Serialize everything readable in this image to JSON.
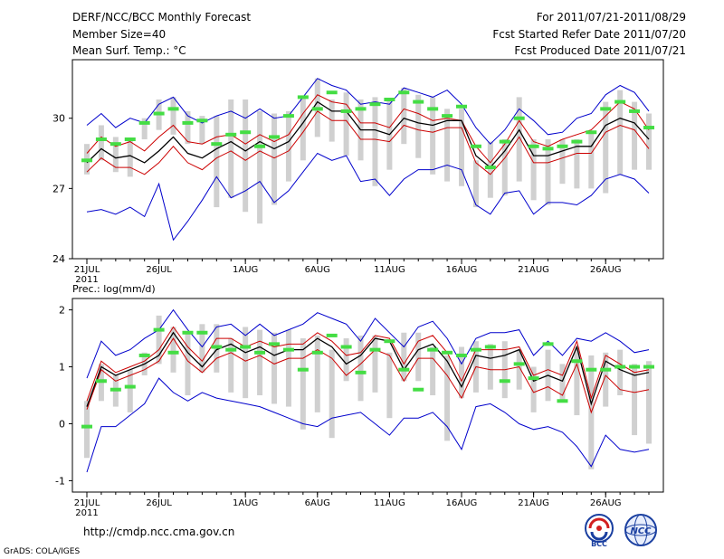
{
  "header": {
    "title": "DERF/NCC/BCC Monthly Forecast",
    "member_size": "Member Size=40",
    "variable_1": "Mean Surf. Temp.: °C",
    "fcst_period": "For 2011/07/21-2011/08/29",
    "fcst_started": "Fcst Started Refer Date 2011/07/20",
    "fcst_produced": "Fcst Produced Date 2011/07/21"
  },
  "footer": {
    "url": "http://cmdp.ncc.cma.gov.cn",
    "grads": "GrADS: COLA/IGES",
    "logo_bcc": "BCC",
    "logo_ncc": "NCC"
  },
  "colors": {
    "max_min": "#0000cc",
    "spread": "#cc0000",
    "mean": "#000000",
    "box": "#d0d0d0",
    "marker": "#44dd44"
  },
  "chart_data": [
    {
      "type": "line",
      "title": "Mean Surf. Temp.: °C",
      "ylim": [
        24,
        32.5
      ],
      "yticks": [
        24,
        27,
        30
      ],
      "ytick_labels": [
        "24",
        "27",
        "30"
      ],
      "xtick_labels": [
        "21JUL",
        "26JUL",
        "1AUG",
        "6AUG",
        "11AUG",
        "16AUG",
        "21AUG",
        "26AUG"
      ],
      "xtick_indices": [
        0,
        5,
        11,
        16,
        21,
        26,
        31,
        36
      ],
      "year_label": "2011",
      "series": [
        {
          "name": "max",
          "color": "#0000cc",
          "values": [
            29.7,
            30.2,
            29.6,
            30.0,
            29.8,
            30.6,
            30.9,
            30.1,
            29.8,
            30.1,
            30.3,
            30.0,
            30.4,
            30.0,
            30.1,
            30.9,
            31.7,
            31.4,
            31.2,
            30.6,
            30.7,
            30.6,
            31.3,
            31.1,
            30.9,
            31.2,
            30.6,
            29.6,
            28.9,
            29.5,
            30.4,
            29.9,
            29.3,
            29.4,
            30.0,
            30.2,
            31.0,
            31.4,
            31.1,
            30.3
          ]
        },
        {
          "name": "upper",
          "color": "#cc0000",
          "values": [
            28.5,
            29.2,
            28.8,
            29.0,
            28.6,
            29.2,
            29.7,
            29.0,
            28.9,
            29.2,
            29.3,
            28.9,
            29.3,
            29.0,
            29.3,
            30.2,
            31.0,
            30.7,
            30.6,
            29.8,
            29.8,
            29.6,
            30.4,
            30.2,
            29.9,
            30.0,
            29.9,
            28.8,
            28.1,
            28.9,
            29.9,
            29.0,
            28.8,
            29.1,
            29.3,
            29.5,
            30.1,
            30.7,
            30.4,
            29.5
          ]
        },
        {
          "name": "mean",
          "color": "#000000",
          "values": [
            28.1,
            28.7,
            28.3,
            28.4,
            28.1,
            28.6,
            29.2,
            28.5,
            28.3,
            28.7,
            29.0,
            28.6,
            29.0,
            28.7,
            29.0,
            29.8,
            30.7,
            30.3,
            30.3,
            29.5,
            29.5,
            29.3,
            30.0,
            29.8,
            29.7,
            29.9,
            29.9,
            28.4,
            27.9,
            28.6,
            29.5,
            28.4,
            28.4,
            28.6,
            28.8,
            28.8,
            29.7,
            30.0,
            29.8,
            29.1
          ]
        },
        {
          "name": "lower",
          "color": "#cc0000",
          "values": [
            27.7,
            28.3,
            27.9,
            27.9,
            27.6,
            28.1,
            28.8,
            28.1,
            27.8,
            28.3,
            28.6,
            28.2,
            28.6,
            28.3,
            28.6,
            29.4,
            30.3,
            29.9,
            29.9,
            29.1,
            29.1,
            29.0,
            29.7,
            29.5,
            29.4,
            29.6,
            29.6,
            28.1,
            27.6,
            28.3,
            29.2,
            28.1,
            28.1,
            28.3,
            28.5,
            28.5,
            29.4,
            29.7,
            29.5,
            28.7
          ]
        },
        {
          "name": "min",
          "color": "#0000cc",
          "values": [
            26.0,
            26.1,
            25.9,
            26.2,
            25.8,
            27.2,
            24.8,
            25.6,
            26.5,
            27.5,
            26.6,
            26.9,
            27.3,
            26.4,
            26.9,
            27.7,
            28.5,
            28.2,
            28.4,
            27.3,
            27.4,
            26.7,
            27.4,
            27.8,
            27.8,
            28.0,
            27.8,
            26.3,
            25.9,
            26.8,
            26.9,
            25.9,
            26.4,
            26.4,
            26.3,
            26.7,
            27.4,
            27.6,
            27.4,
            26.8
          ]
        },
        {
          "name": "marker",
          "color": "#44dd44",
          "values": [
            28.2,
            29.1,
            28.9,
            29.1,
            29.8,
            30.2,
            30.4,
            29.8,
            29.9,
            28.9,
            29.3,
            29.4,
            28.8,
            29.2,
            30.1,
            30.9,
            30.4,
            31.1,
            30.3,
            30.4,
            30.6,
            30.8,
            31.1,
            30.7,
            30.4,
            30.1,
            30.5,
            28.8,
            27.9,
            29.0,
            30.0,
            28.8,
            28.7,
            28.8,
            29.0,
            29.4,
            30.4,
            30.7,
            30.3,
            29.6
          ]
        }
      ],
      "boxes": [
        [
          27.6,
          28.9
        ],
        [
          28.2,
          29.7
        ],
        [
          27.7,
          29.2
        ],
        [
          27.5,
          29.1
        ],
        [
          29.1,
          30.0
        ],
        [
          29.5,
          30.8
        ],
        [
          29.3,
          30.9
        ],
        [
          28.9,
          30.3
        ],
        [
          28.9,
          30.1
        ],
        [
          26.2,
          30.1
        ],
        [
          26.6,
          30.8
        ],
        [
          26.0,
          30.8
        ],
        [
          25.5,
          30.3
        ],
        [
          26.3,
          30.2
        ],
        [
          27.3,
          30.3
        ],
        [
          28.2,
          30.9
        ],
        [
          29.2,
          31.7
        ],
        [
          29.0,
          30.8
        ],
        [
          28.4,
          31.1
        ],
        [
          28.2,
          30.8
        ],
        [
          27.1,
          30.9
        ],
        [
          27.8,
          30.8
        ],
        [
          28.9,
          31.3
        ],
        [
          28.3,
          31.0
        ],
        [
          27.6,
          30.9
        ],
        [
          27.3,
          30.4
        ],
        [
          27.1,
          30.4
        ],
        [
          26.2,
          28.2
        ],
        [
          26.6,
          29.0
        ],
        [
          26.7,
          29.1
        ],
        [
          27.3,
          30.9
        ],
        [
          26.5,
          29.1
        ],
        [
          26.3,
          29.1
        ],
        [
          27.2,
          29.1
        ],
        [
          27.0,
          29.1
        ],
        [
          27.0,
          29.4
        ],
        [
          26.8,
          30.7
        ],
        [
          27.6,
          31.2
        ],
        [
          27.8,
          30.7
        ],
        [
          27.8,
          30.2
        ]
      ]
    },
    {
      "type": "line",
      "title": "Prec.: log(mm/d)",
      "ylim": [
        -1.2,
        2.2
      ],
      "yticks": [
        -1,
        0,
        1,
        2
      ],
      "ytick_labels": [
        "-1",
        "0",
        "1",
        "2"
      ],
      "xtick_labels": [
        "21JUL",
        "26JUL",
        "1AUG",
        "6AUG",
        "11AUG",
        "16AUG",
        "21AUG",
        "26AUG"
      ],
      "xtick_indices": [
        0,
        5,
        11,
        16,
        21,
        26,
        31,
        36
      ],
      "year_label": "2011",
      "series": [
        {
          "name": "max",
          "color": "#0000cc",
          "values": [
            0.8,
            1.45,
            1.2,
            1.3,
            1.5,
            1.65,
            2.0,
            1.65,
            1.35,
            1.7,
            1.75,
            1.55,
            1.75,
            1.55,
            1.65,
            1.75,
            1.95,
            1.85,
            1.75,
            1.45,
            1.85,
            1.6,
            1.35,
            1.7,
            1.8,
            1.5,
            1.05,
            1.5,
            1.6,
            1.6,
            1.65,
            1.2,
            1.45,
            1.2,
            1.5,
            1.45,
            1.6,
            1.45,
            1.25,
            1.3
          ]
        },
        {
          "name": "upper",
          "color": "#cc0000",
          "values": [
            0.4,
            1.1,
            0.9,
            1.0,
            1.1,
            1.3,
            1.7,
            1.35,
            1.1,
            1.5,
            1.5,
            1.35,
            1.45,
            1.35,
            1.4,
            1.4,
            1.6,
            1.45,
            1.2,
            1.25,
            1.55,
            1.5,
            1.05,
            1.45,
            1.55,
            1.25,
            0.75,
            1.3,
            1.3,
            1.3,
            1.35,
            0.85,
            0.95,
            0.85,
            1.45,
            0.45,
            1.2,
            1.05,
            0.9,
            0.95
          ]
        },
        {
          "name": "mean",
          "color": "#000000",
          "values": [
            0.3,
            1.0,
            0.85,
            0.95,
            1.05,
            1.2,
            1.6,
            1.25,
            1.0,
            1.3,
            1.4,
            1.25,
            1.35,
            1.2,
            1.3,
            1.3,
            1.5,
            1.35,
            1.05,
            1.2,
            1.5,
            1.45,
            0.95,
            1.3,
            1.4,
            1.1,
            0.65,
            1.2,
            1.15,
            1.2,
            1.3,
            0.75,
            0.85,
            0.75,
            1.35,
            0.35,
            1.1,
            0.95,
            0.85,
            0.9
          ]
        },
        {
          "name": "lower",
          "color": "#cc0000",
          "values": [
            0.25,
            0.95,
            0.75,
            0.85,
            0.95,
            1.1,
            1.5,
            1.1,
            0.9,
            1.15,
            1.25,
            1.1,
            1.2,
            1.05,
            1.15,
            1.15,
            1.3,
            1.15,
            0.85,
            1.05,
            1.3,
            1.2,
            0.75,
            1.15,
            1.15,
            0.85,
            0.45,
            1.0,
            0.95,
            0.95,
            1.0,
            0.55,
            0.65,
            0.5,
            1.05,
            0.2,
            0.85,
            0.6,
            0.55,
            0.6
          ]
        },
        {
          "name": "min",
          "color": "#0000cc",
          "values": [
            -0.85,
            -0.05,
            -0.05,
            0.15,
            0.35,
            0.8,
            0.55,
            0.4,
            0.55,
            0.45,
            0.4,
            0.35,
            0.3,
            0.2,
            0.1,
            0.0,
            -0.05,
            0.1,
            0.15,
            0.2,
            0.0,
            -0.2,
            0.1,
            0.1,
            0.2,
            -0.05,
            -0.45,
            0.3,
            0.35,
            0.2,
            0.0,
            -0.1,
            -0.05,
            -0.15,
            -0.4,
            -0.75,
            -0.2,
            -0.45,
            -0.5,
            -0.45
          ]
        },
        {
          "name": "marker",
          "color": "#44dd44",
          "values": [
            -0.05,
            0.75,
            0.6,
            0.65,
            1.2,
            1.65,
            1.25,
            1.6,
            1.6,
            1.35,
            1.3,
            1.35,
            1.25,
            1.4,
            1.3,
            0.95,
            1.25,
            1.55,
            1.35,
            0.9,
            1.3,
            1.45,
            0.95,
            0.6,
            1.3,
            1.25,
            1.2,
            1.3,
            1.35,
            0.75,
            1.05,
            0.8,
            1.4,
            0.4,
            1.1,
            0.95,
            0.95,
            1.0,
            1.0,
            1.0
          ]
        }
      ],
      "boxes": [
        [
          -0.6,
          0.4
        ],
        [
          0.4,
          1.05
        ],
        [
          0.3,
          0.85
        ],
        [
          0.2,
          0.95
        ],
        [
          0.85,
          1.25
        ],
        [
          1.05,
          1.9
        ],
        [
          0.9,
          1.7
        ],
        [
          0.5,
          1.6
        ],
        [
          0.9,
          1.75
        ],
        [
          0.9,
          1.75
        ],
        [
          0.55,
          1.5
        ],
        [
          0.45,
          1.7
        ],
        [
          0.5,
          1.65
        ],
        [
          0.35,
          1.6
        ],
        [
          0.3,
          1.65
        ],
        [
          -0.1,
          1.5
        ],
        [
          0.2,
          1.55
        ],
        [
          -0.25,
          1.3
        ],
        [
          0.75,
          1.5
        ],
        [
          0.4,
          1.55
        ],
        [
          0.55,
          1.55
        ],
        [
          0.1,
          1.25
        ],
        [
          0.75,
          1.6
        ],
        [
          0.75,
          1.6
        ],
        [
          0.5,
          1.35
        ],
        [
          -0.3,
          1.2
        ],
        [
          0.45,
          1.35
        ],
        [
          0.55,
          1.45
        ],
        [
          0.6,
          1.4
        ],
        [
          0.45,
          1.45
        ],
        [
          0.6,
          1.3
        ],
        [
          0.2,
          1.0
        ],
        [
          0.4,
          1.3
        ],
        [
          0.4,
          1.05
        ],
        [
          0.15,
          1.35
        ],
        [
          -0.8,
          1.2
        ],
        [
          0.3,
          1.25
        ],
        [
          0.5,
          1.3
        ],
        [
          -0.2,
          1.05
        ],
        [
          -0.35,
          1.1
        ]
      ]
    }
  ]
}
